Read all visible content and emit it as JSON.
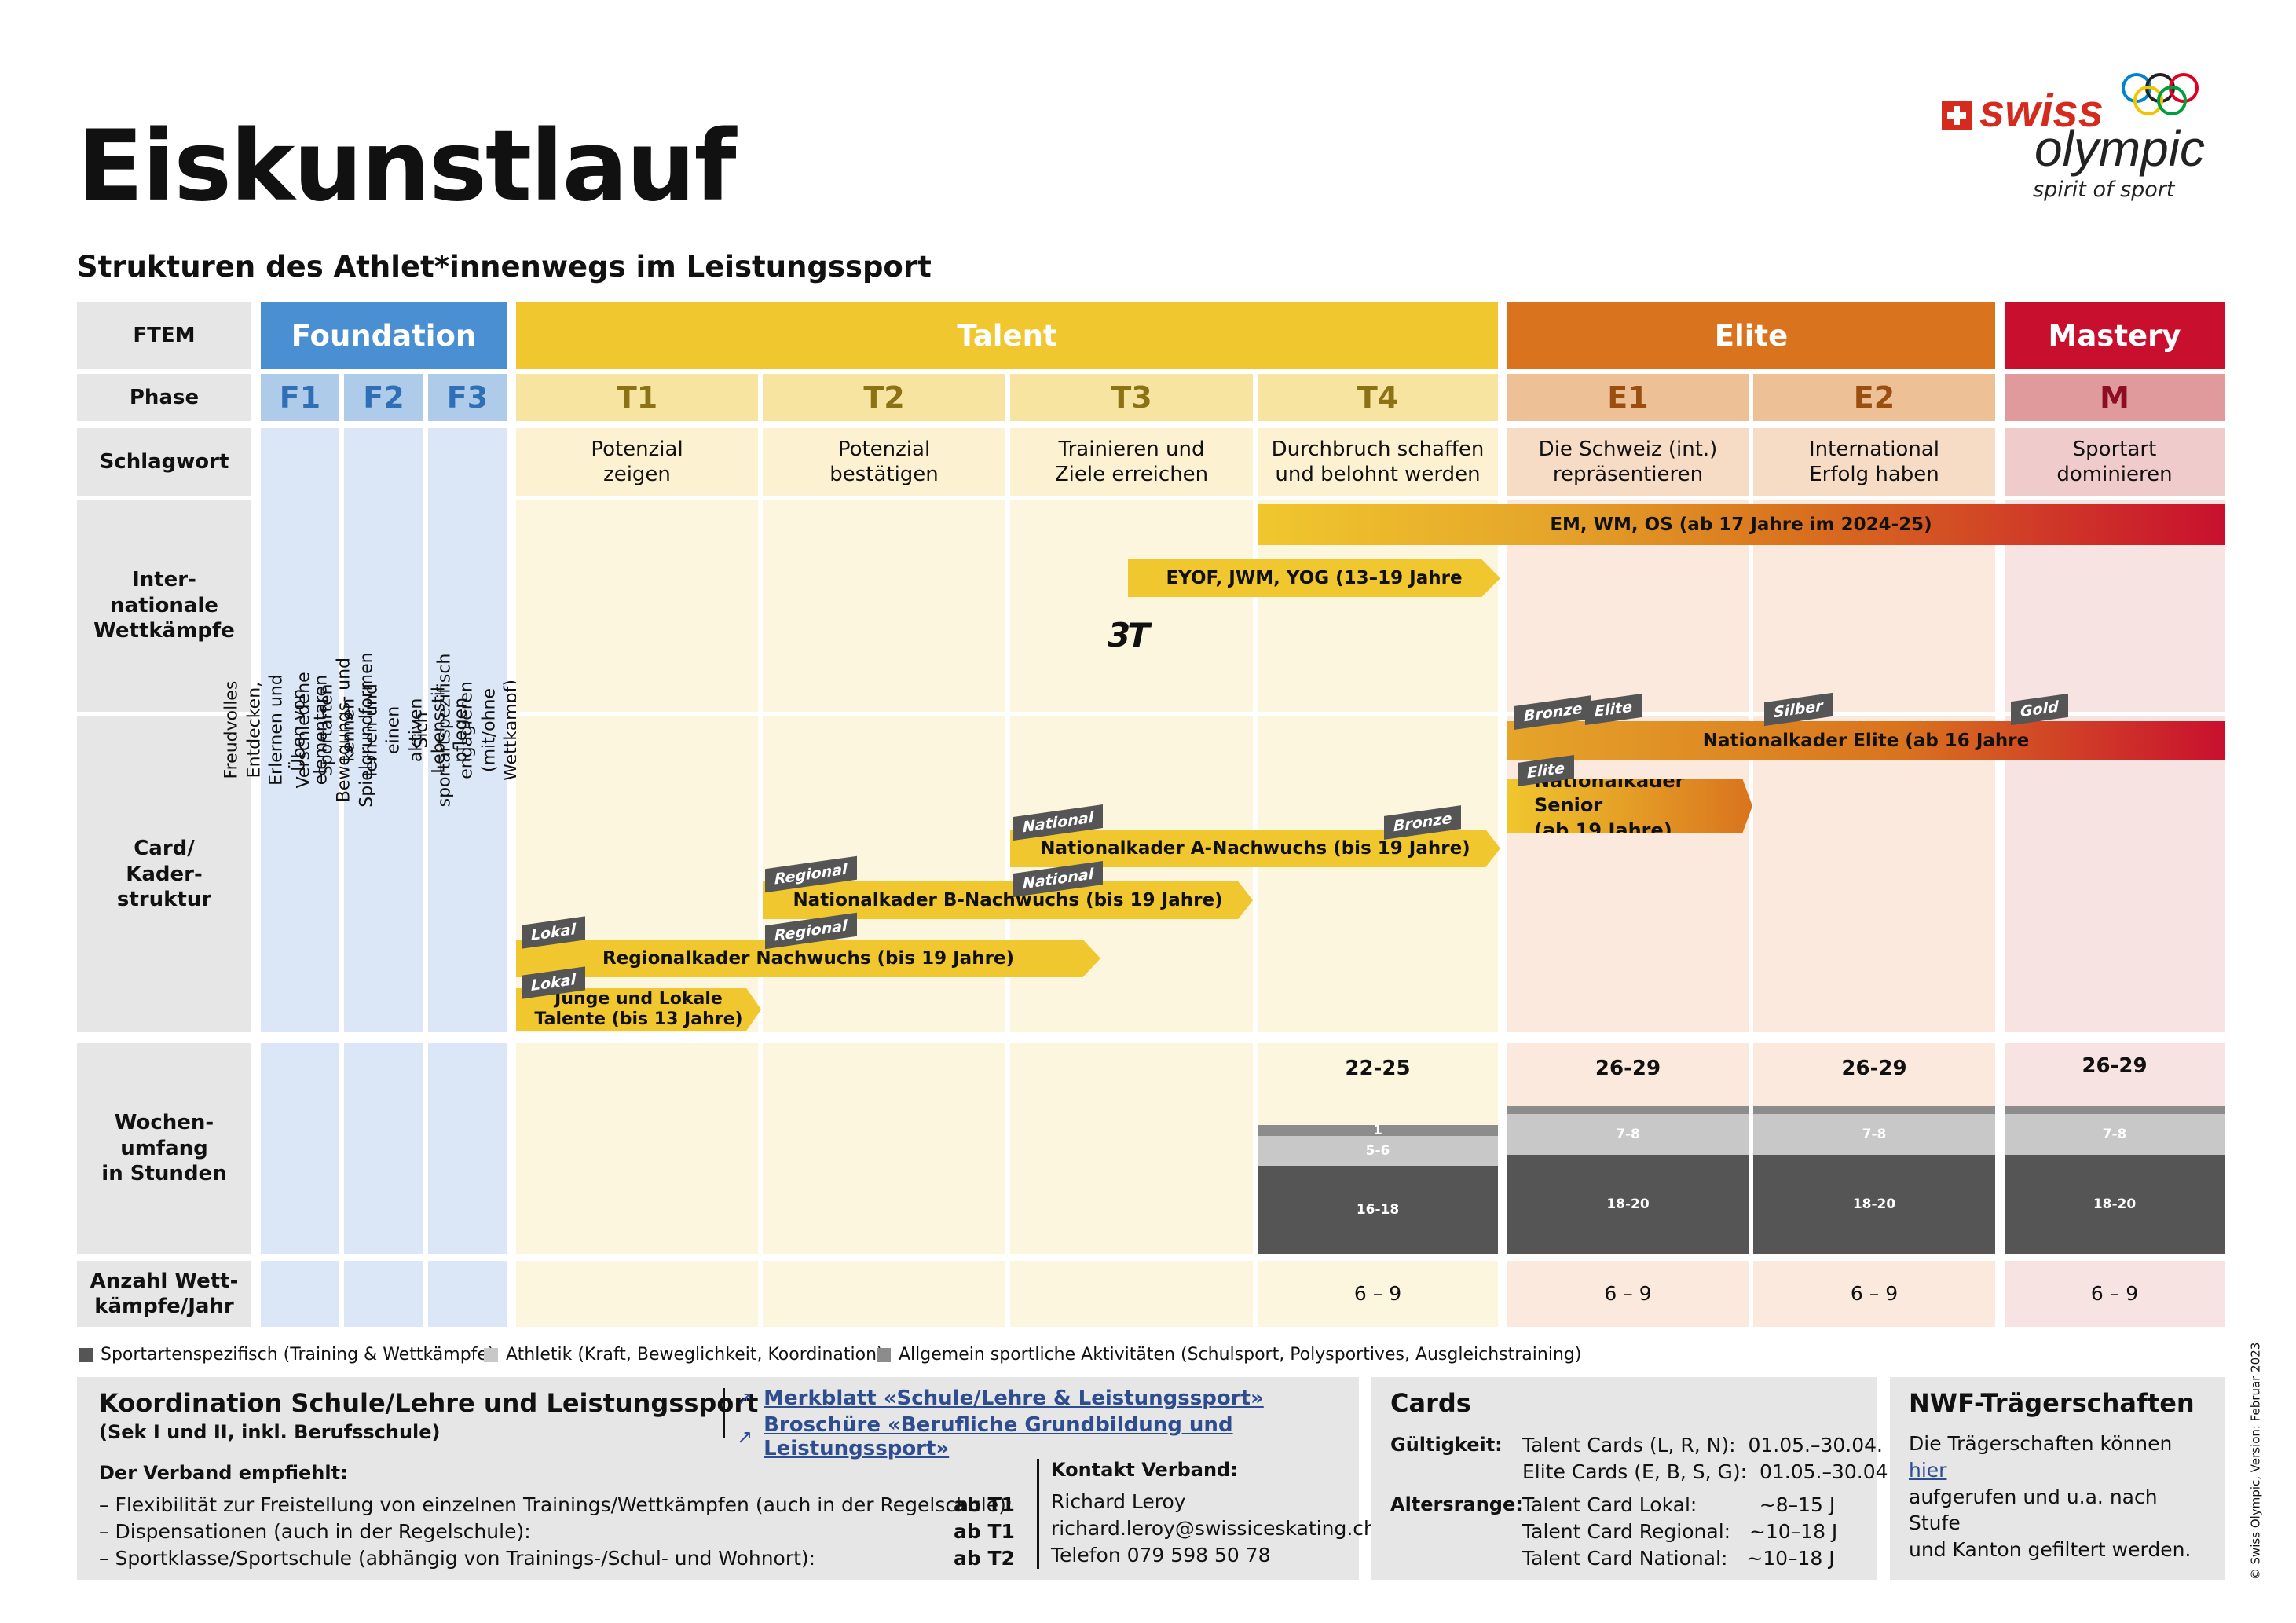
{
  "title": "Eiskunstlauf",
  "subtitle": "Strukturen des Athlet*innenwegs im Leistungssport",
  "logo": {
    "swiss": "swiss",
    "olympic": "olympic",
    "tagline": "spirit of sport"
  },
  "row_labels": {
    "ftem": "FTEM",
    "phase": "Phase",
    "schlagwort": "Schlagwort",
    "international": "Inter-\nnationale\nWettkämpfe",
    "card": "Card/\nKader-\nstruktur",
    "wochen": "Wochen-\numfang\nin Stunden",
    "anzahl": "Anzahl Wett-\nkämpfe/Jahr"
  },
  "stages": {
    "foundation": "Foundation",
    "talent": "Talent",
    "elite": "Elite",
    "mastery": "Mastery"
  },
  "phases": [
    "F1",
    "F2",
    "F3",
    "T1",
    "T2",
    "T3",
    "T4",
    "E1",
    "E2",
    "M"
  ],
  "foundation_texts": [
    "Freudvolles Entdecken, Erlernen und Üben von elementaren\nBewegungs- und Spielgrundformen",
    "Verschiedene Sportarten kennen lernen und einen\naktiven Lebensstil pflegen",
    "Sich sportartspezifisch engagieren (mit/ohne Wettkampf)"
  ],
  "keywords": [
    "Potenzial\nzeigen",
    "Potenzial\nbestätigen",
    "Trainieren und\nZiele erreichen",
    "Durchbruch schaffen\nund belohnt werden",
    "Die Schweiz (int.)\nrepräsentieren",
    "International\nErfolg haben",
    "Sportart\ndominieren"
  ],
  "international_bars": {
    "em": "EM, WM, OS (ab 17 Jahre im 2024-25)",
    "eyof": "EYOF, JWM, YOG (13–19 Jahre"
  },
  "three_t_logo": "3T",
  "kader_bars": {
    "elite": "Nationalkader Elite (ab 16 Jahre",
    "senior": "Nationalkader Senior\n(ab 19 Jahre)",
    "a_nachwuchs": "Nationalkader A-Nachwuchs (bis 19 Jahre)",
    "b_nachwuchs": "Nationalkader B-Nachwuchs (bis 19 Jahre)",
    "regional": "Regionalkader Nachwuchs (bis 19 Jahre)",
    "lokal": "Junge und Lokale\nTalente (bis 13 Jahre)"
  },
  "tags": {
    "bronze": "Bronze",
    "elite": "Elite",
    "silber": "Silber",
    "gold": "Gold",
    "national": "National",
    "regional": "Regional",
    "lokal": "Lokal"
  },
  "wochenumfang": [
    {
      "total": "22-25",
      "sport": "16-18",
      "athletik": "5-6",
      "allgemein": "1"
    },
    {
      "total": "26-29",
      "sport": "18-20",
      "athletik": "7-8",
      "allgemein": "1"
    },
    {
      "total": "26-29",
      "sport": "18-20",
      "athletik": "7-8",
      "allgemein": "1"
    },
    {
      "total": "26-29",
      "sport": "18-20",
      "athletik": "7-8",
      "allgemein": "1"
    }
  ],
  "wettkaempfe": [
    "6 – 9",
    "6 – 9",
    "6 – 9",
    "6 – 9"
  ],
  "legend": [
    {
      "label": "Sportartenspezifisch (Training & Wettkämpfe)",
      "color": "#555555"
    },
    {
      "label": "Athletik (Kraft, Beweglichkeit, Koordination)",
      "color": "#c8c8c8"
    },
    {
      "label": "Allgemein sportliche Aktivitäten (Schulsport, Polysportives, Ausgleichstraining)",
      "color": "#8c8c8c"
    }
  ],
  "schule": {
    "title": "Koordination Schule/Lehre und Leistungssport",
    "subtitle": "(Sek I und II, inkl. Berufsschule)",
    "link1": "Merkblatt «Schule/Lehre & Leistungssport»",
    "link2": "Broschüre «Berufliche Grundbildung und Leistungssport»",
    "verband_title": "Der Verband empfiehlt:",
    "items": [
      {
        "text": "– Flexibilität zur Freistellung von einzelnen Trainings/Wettkämpfen (auch in der Regelschule):",
        "value": "ab T1"
      },
      {
        "text": "– Dispensationen (auch in der Regelschule):",
        "value": "ab T1"
      },
      {
        "text": "– Sportklasse/Sportschule (abhängig von Trainings-/Schul- und Wohnort):",
        "value": "ab T2"
      }
    ],
    "kontakt_title": "Kontakt Verband:",
    "kontakt_lines": [
      "Richard Leroy",
      "richard.leroy@swissiceskating.ch",
      "Telefon 079 598 50 78"
    ]
  },
  "cards": {
    "title": "Cards",
    "gueltigkeit_label": "Gültigkeit:",
    "gueltigkeit": [
      "Talent Cards (L, R, N):  01.05.–30.04.",
      "Elite Cards (E, B, S, G):  01.05.–30.04."
    ],
    "altersrange_label": "Altersrange:",
    "altersrange": [
      "Talent Card Lokal:          ~8–15 J",
      "Talent Card Regional:   ~10–18 J",
      "Talent Card National:   ~10–18 J"
    ]
  },
  "nwf": {
    "title": "NWF-Trägerschaften",
    "text_before": "Die Trägerschaften können ",
    "link": "hier",
    "text_after": "\naufgerufen und u.a. nach Stufe\nund Kanton gefiltert werden."
  },
  "copyright": "© Swiss Olympic, Version: Februar 2023",
  "colors": {
    "foundation": "#4a8fd2",
    "talent": "#f0c72e",
    "elite": "#d9731e",
    "mastery": "#c8102e",
    "dark": "#555555"
  }
}
